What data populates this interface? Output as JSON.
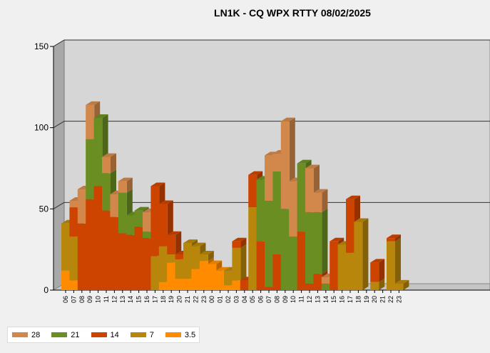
{
  "chart_data": {
    "type": "bar",
    "stacked": true,
    "three_d": true,
    "title": "LN1K - CQ WPX RTTY 08/02/2025",
    "ylim": [
      0,
      150
    ],
    "yticks": [
      0,
      50,
      100,
      150
    ],
    "grid": true,
    "legend_position": "bottom-left",
    "categories": [
      "06",
      "07",
      "08",
      "09",
      "10",
      "11",
      "12",
      "13",
      "14",
      "15",
      "16",
      "17",
      "18",
      "19",
      "20",
      "21",
      "22",
      "23",
      "00",
      "01",
      "02",
      "03",
      "04",
      "05",
      "06",
      "07",
      "08",
      "09",
      "10",
      "11",
      "12",
      "13",
      "14",
      "15",
      "16",
      "17",
      "18",
      "19",
      "20",
      "21",
      "22",
      "23"
    ],
    "series": [
      {
        "name": "3.5",
        "color": "#ff8c00",
        "values": [
          12,
          6,
          0,
          0,
          0,
          0,
          0,
          0,
          0,
          0,
          0,
          0,
          5,
          17,
          7,
          7,
          13,
          18,
          16,
          12,
          3,
          6,
          0,
          0,
          0,
          0,
          0,
          0,
          0,
          0,
          0,
          0,
          0,
          0,
          0,
          0,
          0,
          0,
          0,
          0,
          0,
          0
        ]
      },
      {
        "name": "7",
        "color": "#b8860b",
        "values": [
          29,
          27,
          0,
          0,
          0,
          0,
          0,
          0,
          0,
          0,
          0,
          21,
          22,
          5,
          12,
          22,
          14,
          4,
          0,
          0,
          9,
          20,
          0,
          51,
          0,
          0,
          0,
          0,
          0,
          0,
          0,
          0,
          0,
          0,
          28,
          23,
          42,
          0,
          5,
          0,
          30,
          4
        ]
      },
      {
        "name": "14",
        "color": "#cc4400",
        "values": [
          0,
          18,
          41,
          56,
          64,
          49,
          45,
          35,
          34,
          39,
          32,
          43,
          26,
          12,
          3,
          0,
          0,
          0,
          0,
          0,
          0,
          4,
          6,
          20,
          30,
          2,
          22,
          0,
          0,
          36,
          4,
          10,
          0,
          30,
          0,
          33,
          0,
          0,
          12,
          0,
          2,
          0
        ]
      },
      {
        "name": "21",
        "color": "#6b8e23",
        "values": [
          0,
          0,
          0,
          37,
          42,
          23,
          0,
          25,
          12,
          10,
          4,
          0,
          0,
          0,
          0,
          0,
          0,
          0,
          0,
          0,
          0,
          0,
          0,
          0,
          38,
          53,
          51,
          50,
          33,
          42,
          44,
          38,
          4,
          0,
          0,
          0,
          0,
          0,
          0,
          0,
          0,
          0
        ]
      },
      {
        "name": "28",
        "color": "#d2884a",
        "values": [
          0,
          4,
          21,
          21,
          0,
          10,
          14,
          7,
          0,
          0,
          12,
          0,
          0,
          0,
          0,
          0,
          0,
          0,
          0,
          0,
          0,
          0,
          0,
          0,
          0,
          28,
          11,
          54,
          34,
          0,
          27,
          12,
          4,
          0,
          0,
          0,
          0,
          0,
          0,
          0,
          0,
          0
        ]
      }
    ],
    "legend_order": [
      "28",
      "21",
      "14",
      "7",
      "3.5"
    ]
  },
  "legend": [
    {
      "label": "28",
      "color": "#d2884a"
    },
    {
      "label": "21",
      "color": "#6b8e23"
    },
    {
      "label": "14",
      "color": "#cc4400"
    },
    {
      "label": "7",
      "color": "#b8860b"
    },
    {
      "label": "3.5",
      "color": "#ff8c00"
    }
  ]
}
